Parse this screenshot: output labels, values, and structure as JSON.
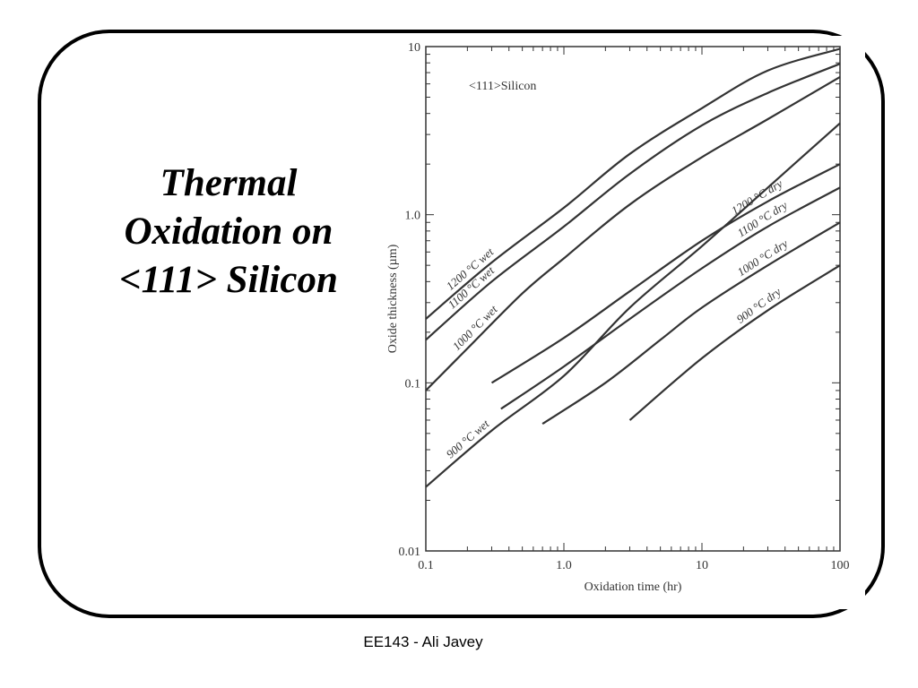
{
  "slide": {
    "title_lines": [
      "Thermal",
      "Oxidation on",
      "<111> Silicon"
    ],
    "footer": "EE143 - Ali Javey"
  },
  "chart_data": {
    "type": "line",
    "x_scale": "log",
    "y_scale": "log",
    "xlim": [
      0.1,
      100
    ],
    "ylim": [
      0.01,
      10
    ],
    "xlabel": "Oxidation time (hr)",
    "ylabel": "Oxide thickness (µm)",
    "annotation": "<111>Silicon",
    "x_tick_labels": [
      {
        "value": 0.1,
        "label": "0.1"
      },
      {
        "value": 1,
        "label": "1.0"
      },
      {
        "value": 10,
        "label": "10"
      },
      {
        "value": 100,
        "label": "100"
      }
    ],
    "y_tick_labels": [
      {
        "value": 0.01,
        "label": "0.01"
      },
      {
        "value": 0.1,
        "label": "0.1"
      },
      {
        "value": 1,
        "label": "1.0"
      },
      {
        "value": 10,
        "label": "10"
      }
    ],
    "line_color": "#333333",
    "series": [
      {
        "name": "1200 °C wet",
        "points": [
          [
            0.1,
            0.24
          ],
          [
            0.3,
            0.52
          ],
          [
            1,
            1.1
          ],
          [
            3,
            2.3
          ],
          [
            10,
            4.3
          ],
          [
            30,
            7.2
          ],
          [
            100,
            9.7
          ]
        ],
        "label_x": 0.16
      },
      {
        "name": "1100 °C wet",
        "points": [
          [
            0.1,
            0.18
          ],
          [
            0.3,
            0.4
          ],
          [
            1,
            0.85
          ],
          [
            3,
            1.75
          ],
          [
            10,
            3.4
          ],
          [
            30,
            5.3
          ],
          [
            100,
            7.9
          ]
        ],
        "label_x": 0.165
      },
      {
        "name": "1000 °C wet",
        "points": [
          [
            0.1,
            0.09
          ],
          [
            0.2,
            0.16
          ],
          [
            0.5,
            0.34
          ],
          [
            1,
            0.55
          ],
          [
            3,
            1.15
          ],
          [
            10,
            2.2
          ],
          [
            30,
            3.7
          ],
          [
            100,
            6.6
          ]
        ],
        "label_x": 0.18
      },
      {
        "name": "900 °C wet",
        "points": [
          [
            0.1,
            0.024
          ],
          [
            0.3,
            0.052
          ],
          [
            1,
            0.11
          ],
          [
            3,
            0.28
          ],
          [
            10,
            0.65
          ],
          [
            30,
            1.45
          ],
          [
            100,
            3.5
          ]
        ],
        "label_x": 0.16
      },
      {
        "name": "1200 °C dry",
        "points": [
          [
            0.3,
            0.1
          ],
          [
            1,
            0.185
          ],
          [
            3,
            0.35
          ],
          [
            10,
            0.7
          ],
          [
            30,
            1.2
          ],
          [
            100,
            2.0
          ]
        ],
        "label_x": 18
      },
      {
        "name": "1100 °C dry",
        "points": [
          [
            0.35,
            0.07
          ],
          [
            1,
            0.125
          ],
          [
            3,
            0.24
          ],
          [
            10,
            0.48
          ],
          [
            30,
            0.85
          ],
          [
            100,
            1.45
          ]
        ],
        "label_x": 20
      },
      {
        "name": "1000 °C dry",
        "points": [
          [
            0.7,
            0.057
          ],
          [
            2,
            0.1
          ],
          [
            5,
            0.18
          ],
          [
            10,
            0.28
          ],
          [
            30,
            0.5
          ],
          [
            100,
            0.9
          ]
        ],
        "label_x": 20
      },
      {
        "name": "900 °C dry",
        "points": [
          [
            3,
            0.06
          ],
          [
            10,
            0.14
          ],
          [
            30,
            0.27
          ],
          [
            100,
            0.5
          ]
        ],
        "label_x": 20
      }
    ]
  }
}
